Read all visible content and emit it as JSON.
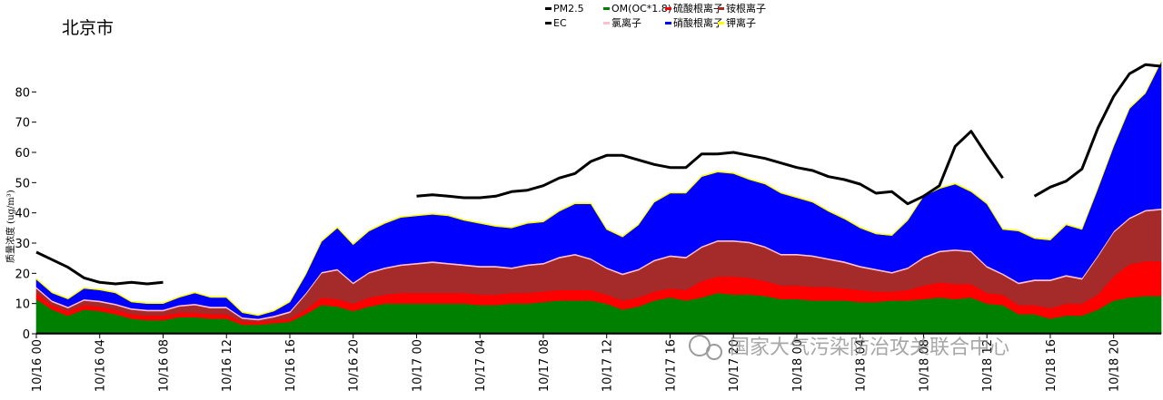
{
  "chart_data": {
    "type": "area",
    "title": "北京市",
    "ylabel": "质量浓度 (ug/m³)",
    "xlabel": "",
    "ylim": [
      0,
      90
    ],
    "yticks": [
      0,
      10,
      20,
      30,
      40,
      50,
      60,
      70,
      80
    ],
    "x": [
      0,
      1,
      2,
      3,
      4,
      5,
      6,
      7,
      8,
      9,
      10,
      11,
      12,
      13,
      14,
      15,
      16,
      17,
      18,
      19,
      20,
      21,
      22,
      23,
      24,
      25,
      26,
      27,
      28,
      29,
      30,
      31,
      32,
      33,
      34,
      35,
      36,
      37,
      38,
      39,
      40,
      41,
      42,
      43,
      44,
      45,
      46,
      47,
      48,
      49,
      50,
      51,
      52,
      53,
      54,
      55,
      56,
      57,
      58,
      59,
      60,
      61,
      62,
      63,
      64,
      65,
      66,
      67,
      68,
      69,
      70,
      71
    ],
    "xticks": [
      {
        "x": 0,
        "label": "10/16 00"
      },
      {
        "x": 4,
        "label": "10/16 04"
      },
      {
        "x": 8,
        "label": "10/16 08"
      },
      {
        "x": 12,
        "label": "10/16 12"
      },
      {
        "x": 16,
        "label": "10/16 16"
      },
      {
        "x": 20,
        "label": "10/16 20"
      },
      {
        "x": 24,
        "label": "10/17 00"
      },
      {
        "x": 28,
        "label": "10/17 04"
      },
      {
        "x": 32,
        "label": "10/17 08"
      },
      {
        "x": 36,
        "label": "10/17 12"
      },
      {
        "x": 40,
        "label": "10/17 16"
      },
      {
        "x": 44,
        "label": "10/17 20"
      },
      {
        "x": 48,
        "label": "10/18 00"
      },
      {
        "x": 52,
        "label": "10/18 04"
      },
      {
        "x": 56,
        "label": "10/18 08"
      },
      {
        "x": 60,
        "label": "10/18 12"
      },
      {
        "x": 64,
        "label": "10/18 16"
      },
      {
        "x": 68,
        "label": "10/18 20"
      }
    ],
    "legend_placement": "top-center",
    "grid": false,
    "pm25": {
      "name": "PM2.5",
      "color": "#000000",
      "values": [
        27,
        24.5,
        22,
        18.5,
        17,
        16.5,
        17,
        16.5,
        17,
        null,
        null,
        null,
        null,
        null,
        null,
        null,
        null,
        null,
        null,
        null,
        null,
        null,
        null,
        null,
        45.5,
        46,
        45.5,
        45,
        45,
        45.5,
        47,
        47.5,
        49,
        51.5,
        53,
        57,
        59,
        59,
        57.5,
        56,
        55,
        55,
        59.5,
        59.5,
        60,
        59,
        58,
        56.5,
        55,
        54,
        52,
        51,
        49.5,
        46.5,
        47,
        43,
        45.5,
        49,
        62,
        67,
        59,
        51.5,
        null,
        45.5,
        48.5,
        50.5,
        54.5,
        68,
        78.5,
        86,
        89,
        88.5
      ]
    },
    "series": [
      {
        "name": "EC",
        "color": "#000000",
        "values": [
          0.5,
          0.5,
          0.5,
          0.5,
          0.5,
          0.5,
          0.5,
          0.5,
          0.5,
          0.5,
          0.5,
          0.5,
          0.5,
          0.5,
          0.5,
          0.5,
          0.5,
          0.5,
          0.5,
          0.5,
          0.5,
          0.5,
          0.5,
          0.5,
          0.5,
          0.5,
          0.5,
          0.5,
          0.5,
          0.5,
          0.5,
          0.5,
          0.5,
          0.5,
          0.5,
          0.5,
          0.5,
          0.5,
          0.5,
          0.5,
          0.5,
          0.5,
          0.5,
          0.5,
          0.5,
          0.5,
          0.5,
          0.5,
          0.5,
          0.5,
          0.5,
          0.5,
          0.5,
          0.5,
          0.5,
          0.5,
          0.5,
          0.5,
          0.5,
          0.5,
          0.5,
          0.5,
          0.5,
          0.5,
          0.5,
          0.5,
          0.5,
          0.5,
          0.5,
          0.5,
          0.5,
          0.5
        ]
      },
      {
        "name": "OM(OC*1.8)",
        "color": "#008000",
        "values": [
          11,
          7.5,
          5.5,
          7.5,
          7,
          6,
          4.5,
          4,
          4,
          5,
          5,
          4.5,
          4.5,
          2.5,
          2.5,
          3,
          3.5,
          6,
          9,
          8.5,
          7,
          8.5,
          9.5,
          9.5,
          9.5,
          9.5,
          9.5,
          9.5,
          9,
          9,
          9.5,
          9.5,
          10,
          10.5,
          10.5,
          10.5,
          9.5,
          7.5,
          8.5,
          10.5,
          11.5,
          10.5,
          11.5,
          13,
          12.5,
          12.5,
          12,
          11,
          11,
          10.5,
          10.5,
          10.5,
          10,
          10,
          10.5,
          10.5,
          11,
          11.5,
          11,
          11.5,
          9.5,
          9,
          6,
          6,
          4.5,
          5.5,
          5.5,
          7.5,
          10.5,
          11.5,
          12,
          12
        ]
      },
      {
        "name": "硫酸根离子",
        "color": "#ff0000",
        "values": [
          2,
          1.5,
          1.5,
          1.5,
          1.5,
          1.5,
          1.5,
          1.5,
          1.5,
          1.5,
          1.5,
          1.5,
          1.5,
          1,
          1,
          1,
          1,
          1.5,
          2.5,
          2.5,
          2.5,
          3,
          3,
          3.5,
          3.5,
          3.5,
          3.5,
          3.5,
          3.5,
          3.5,
          3.5,
          3.5,
          3.5,
          3.5,
          3.5,
          3.5,
          3,
          3,
          3,
          3,
          3,
          3.5,
          5.5,
          5.5,
          6,
          5.5,
          5,
          4.5,
          4.5,
          4.5,
          4.5,
          4,
          4,
          3.5,
          3,
          3.5,
          4.5,
          5,
          5,
          4.5,
          3.5,
          3.5,
          3,
          3,
          3.5,
          4,
          4,
          5,
          8,
          11,
          11.5,
          11.5
        ]
      },
      {
        "name": "铵根离子",
        "color": "#a52a2a",
        "values": [
          1.5,
          1,
          1,
          1.5,
          1.5,
          1.5,
          1.5,
          1.5,
          1.5,
          2,
          2.5,
          2,
          2,
          1,
          0.5,
          1,
          2,
          5,
          8,
          9.5,
          6.5,
          8,
          8.5,
          9,
          9.5,
          10,
          9.5,
          9,
          9,
          9,
          8,
          9,
          9,
          10.5,
          11.5,
          10,
          8.5,
          8.5,
          9,
          10,
          10.5,
          10.5,
          11,
          11.5,
          11.5,
          11.5,
          11,
          10,
          10,
          10,
          9,
          8.5,
          7.5,
          7,
          6,
          7,
          9,
          10,
          11,
          10.5,
          8.5,
          6.5,
          7,
          8,
          9,
          9,
          8,
          12.5,
          14.5,
          15,
          16.5,
          17
        ]
      },
      {
        "name": "氯离子",
        "color": "#ffc0cb",
        "values": [
          0.5,
          0.5,
          0.5,
          0.5,
          0.5,
          0.5,
          0.5,
          0.5,
          0.5,
          0.5,
          0.5,
          0.5,
          0.5,
          0.5,
          0.5,
          0.5,
          0.5,
          0.5,
          0.5,
          0.5,
          0.5,
          0.5,
          0.5,
          0.5,
          0.5,
          0.5,
          0.5,
          0.5,
          0.5,
          0.5,
          0.5,
          0.5,
          0.5,
          0.5,
          0.5,
          0.5,
          0.5,
          0.5,
          0.5,
          0.5,
          0.5,
          0.5,
          0.5,
          0.5,
          0.5,
          0.5,
          0.5,
          0.5,
          0.5,
          0.5,
          0.5,
          0.5,
          0.5,
          0.5,
          0.5,
          0.5,
          0.5,
          0.5,
          0.5,
          0.5,
          0.5,
          0.5,
          0.5,
          0.5,
          0.5,
          0.5,
          0.5,
          0.5,
          0.5,
          0.5,
          0.5,
          0.5
        ]
      },
      {
        "name": "硝酸根离子",
        "color": "#0000ff",
        "values": [
          2.5,
          2.5,
          2.5,
          3.5,
          3.5,
          3.5,
          2,
          2,
          2,
          2.5,
          3.5,
          3,
          3,
          1.5,
          1,
          1.5,
          3,
          6,
          10,
          13.5,
          12.5,
          13.5,
          14.5,
          15.5,
          15.5,
          15.5,
          15.5,
          14.5,
          14,
          13,
          13,
          13.5,
          13.5,
          15,
          16.5,
          18,
          12.5,
          12,
          14.5,
          19,
          20.5,
          21,
          23,
          22.5,
          22,
          20.5,
          20.5,
          20,
          18.5,
          17.5,
          15.5,
          14,
          12.5,
          11.5,
          12,
          15.5,
          20,
          20.5,
          21.5,
          19.5,
          20.5,
          14.5,
          17,
          13.5,
          13,
          16.5,
          16,
          22,
          28,
          36,
          38.5,
          48.5
        ]
      },
      {
        "name": "钾离子",
        "color": "#ffff00",
        "values": [
          0.3,
          0.3,
          0.3,
          0.3,
          0.3,
          0.3,
          0.3,
          0.3,
          0.3,
          0.3,
          0.3,
          0.3,
          0.3,
          0.3,
          0.3,
          0.3,
          0.3,
          0.3,
          0.3,
          0.3,
          0.3,
          0.3,
          0.3,
          0.3,
          0.3,
          0.3,
          0.3,
          0.3,
          0.3,
          0.3,
          0.3,
          0.3,
          0.3,
          0.3,
          0.3,
          0.3,
          0.3,
          0.3,
          0.3,
          0.3,
          0.3,
          0.3,
          0.3,
          0.3,
          0.3,
          0.3,
          0.3,
          0.3,
          0.3,
          0.3,
          0.3,
          0.3,
          0.3,
          0.3,
          0.3,
          0.3,
          0.3,
          0.3,
          0.3,
          0.3,
          0.3,
          0.3,
          0.3,
          0.3,
          0.3,
          0.3,
          0.3,
          0.3,
          0.3,
          0.3,
          0.3,
          0.3
        ]
      }
    ],
    "legend_order": [
      "PM2.5",
      "OM(OC*1.8)",
      "硫酸根离子",
      "铵根离子",
      "EC",
      "氯离子",
      "硝酸根离子",
      "钾离子"
    ]
  },
  "watermark": "国家大气污染防治攻关联合中心"
}
